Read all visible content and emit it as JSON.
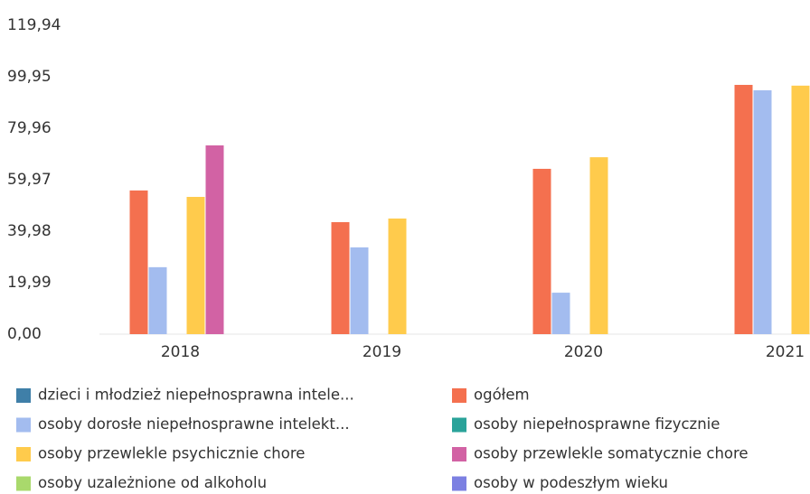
{
  "chart_data": {
    "type": "bar",
    "categories": [
      "2018",
      "2019",
      "2020",
      "2021"
    ],
    "ylim": [
      0,
      119.94
    ],
    "yticks": [
      {
        "value": 0,
        "label": "0,00"
      },
      {
        "value": 19.99,
        "label": "19,99"
      },
      {
        "value": 39.98,
        "label": "39,98"
      },
      {
        "value": 59.97,
        "label": "59,97"
      },
      {
        "value": 79.96,
        "label": "79,96"
      },
      {
        "value": 99.95,
        "label": "99,95"
      },
      {
        "value": 119.94,
        "label": "119,94"
      }
    ],
    "series": [
      {
        "name": "dzieci i młodzież niepełnosprawna intele...",
        "color": "#3f7fa8",
        "values": [
          null,
          null,
          null,
          null
        ]
      },
      {
        "name": "ogółem",
        "color": "#f4704f",
        "values": [
          55.8,
          43.5,
          64.2,
          96.8
        ]
      },
      {
        "name": "osoby dorosłe niepełnosprawne intelekt...",
        "color": "#a3bcef",
        "values": [
          26.0,
          33.7,
          16.1,
          94.7
        ]
      },
      {
        "name": "osoby niepełnosprawne fizycznie",
        "color": "#2aa39a",
        "values": [
          null,
          null,
          null,
          null
        ]
      },
      {
        "name": "osoby przewlekle psychicznie chore",
        "color": "#ffcb4c",
        "values": [
          53.3,
          44.9,
          68.7,
          96.5
        ]
      },
      {
        "name": "osoby przewlekle somatycznie chore",
        "color": "#d262a4",
        "values": [
          73.3,
          null,
          null,
          null
        ]
      },
      {
        "name": "osoby uzależnione od alkoholu",
        "color": "#a9d96c",
        "values": [
          null,
          null,
          null,
          null
        ]
      },
      {
        "name": "osoby w podeszłym wieku",
        "color": "#7c80e2",
        "values": [
          null,
          null,
          null,
          null
        ]
      }
    ]
  }
}
